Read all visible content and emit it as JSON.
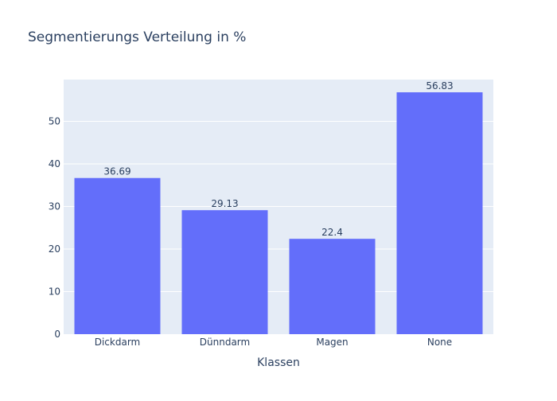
{
  "chart_data": {
    "type": "bar",
    "title": "Segmentierungs Verteilung in %",
    "xlabel": "Klassen",
    "ylabel": "",
    "categories": [
      "Dickdarm",
      "Dünndarm",
      "Magen",
      "None"
    ],
    "values": [
      36.69,
      29.13,
      22.4,
      56.83
    ],
    "data_labels": [
      "36.69",
      "29.13",
      "22.4",
      "56.83"
    ],
    "ylim": [
      0,
      59.82
    ],
    "yticks": [
      0,
      10,
      20,
      30,
      40,
      50
    ],
    "grid": true,
    "colors": {
      "bar": "#636efa",
      "plot_background": "#e5ecf6",
      "grid": "#ffffff",
      "text": "#2a3f5f",
      "tick_text": "#2a3f5f"
    }
  }
}
